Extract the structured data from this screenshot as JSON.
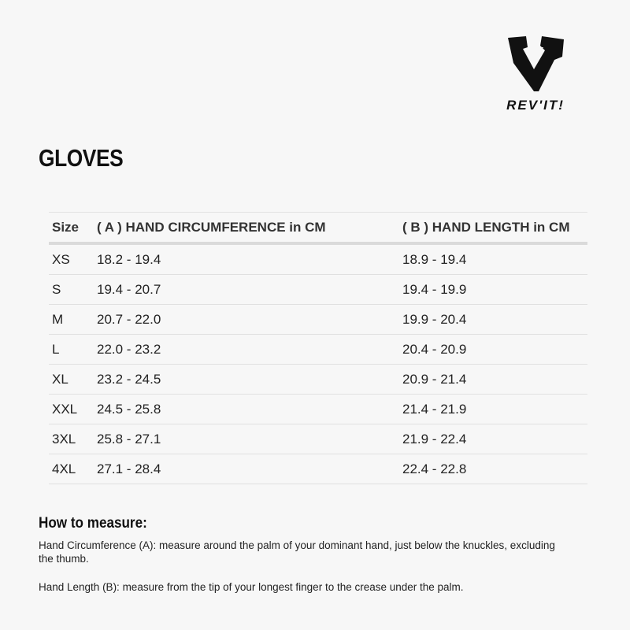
{
  "brand": {
    "name": "REV'IT!"
  },
  "title": "GLOVES",
  "table": {
    "headers": [
      "Size",
      "( A ) HAND CIRCUMFERENCE in CM",
      "( B ) HAND LENGTH in CM"
    ],
    "rows": [
      [
        "XS",
        "18.2 - 19.4",
        "18.9 - 19.4"
      ],
      [
        "S",
        "19.4 - 20.7",
        "19.4 - 19.9"
      ],
      [
        "M",
        "20.7 - 22.0",
        "19.9 - 20.4"
      ],
      [
        "L",
        "22.0 - 23.2",
        "20.4 - 20.9"
      ],
      [
        "XL",
        "23.2 - 24.5",
        "20.9 - 21.4"
      ],
      [
        "XXL",
        "24.5 - 25.8",
        "21.4 - 21.9"
      ],
      [
        "3XL",
        "25.8 - 27.1",
        "21.9 - 22.4"
      ],
      [
        "4XL",
        "27.1 - 28.4",
        "22.4 - 22.8"
      ]
    ]
  },
  "how_to": {
    "heading": "How to measure:",
    "circumference": "Hand Circumference (A): measure around the palm of your dominant hand, just below the knuckles, excluding the thumb.",
    "length": "Hand Length (B): measure from the tip of your longest finger to the crease under the palm."
  }
}
